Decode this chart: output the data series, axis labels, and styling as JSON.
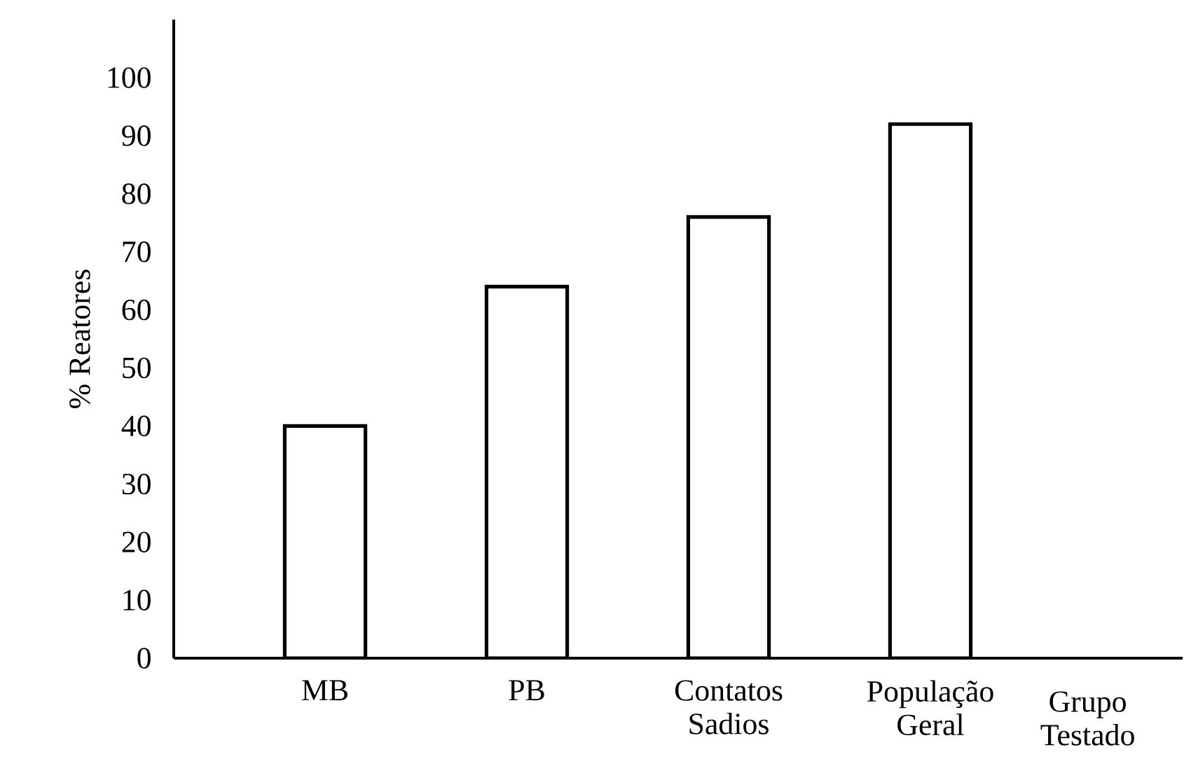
{
  "chart_data": {
    "type": "bar",
    "xlabel": "Grupo Testado",
    "ylabel": "% Reatores",
    "categories": [
      "MB",
      "PB",
      "Contatos Sadios",
      "População Geral"
    ],
    "values": [
      40,
      64,
      76,
      92
    ],
    "color": "#ffffff",
    "ylim": [
      0,
      110
    ],
    "yticks": [
      0,
      10,
      20,
      30,
      40,
      50,
      60,
      70,
      80,
      90,
      100
    ],
    "grid": false
  }
}
